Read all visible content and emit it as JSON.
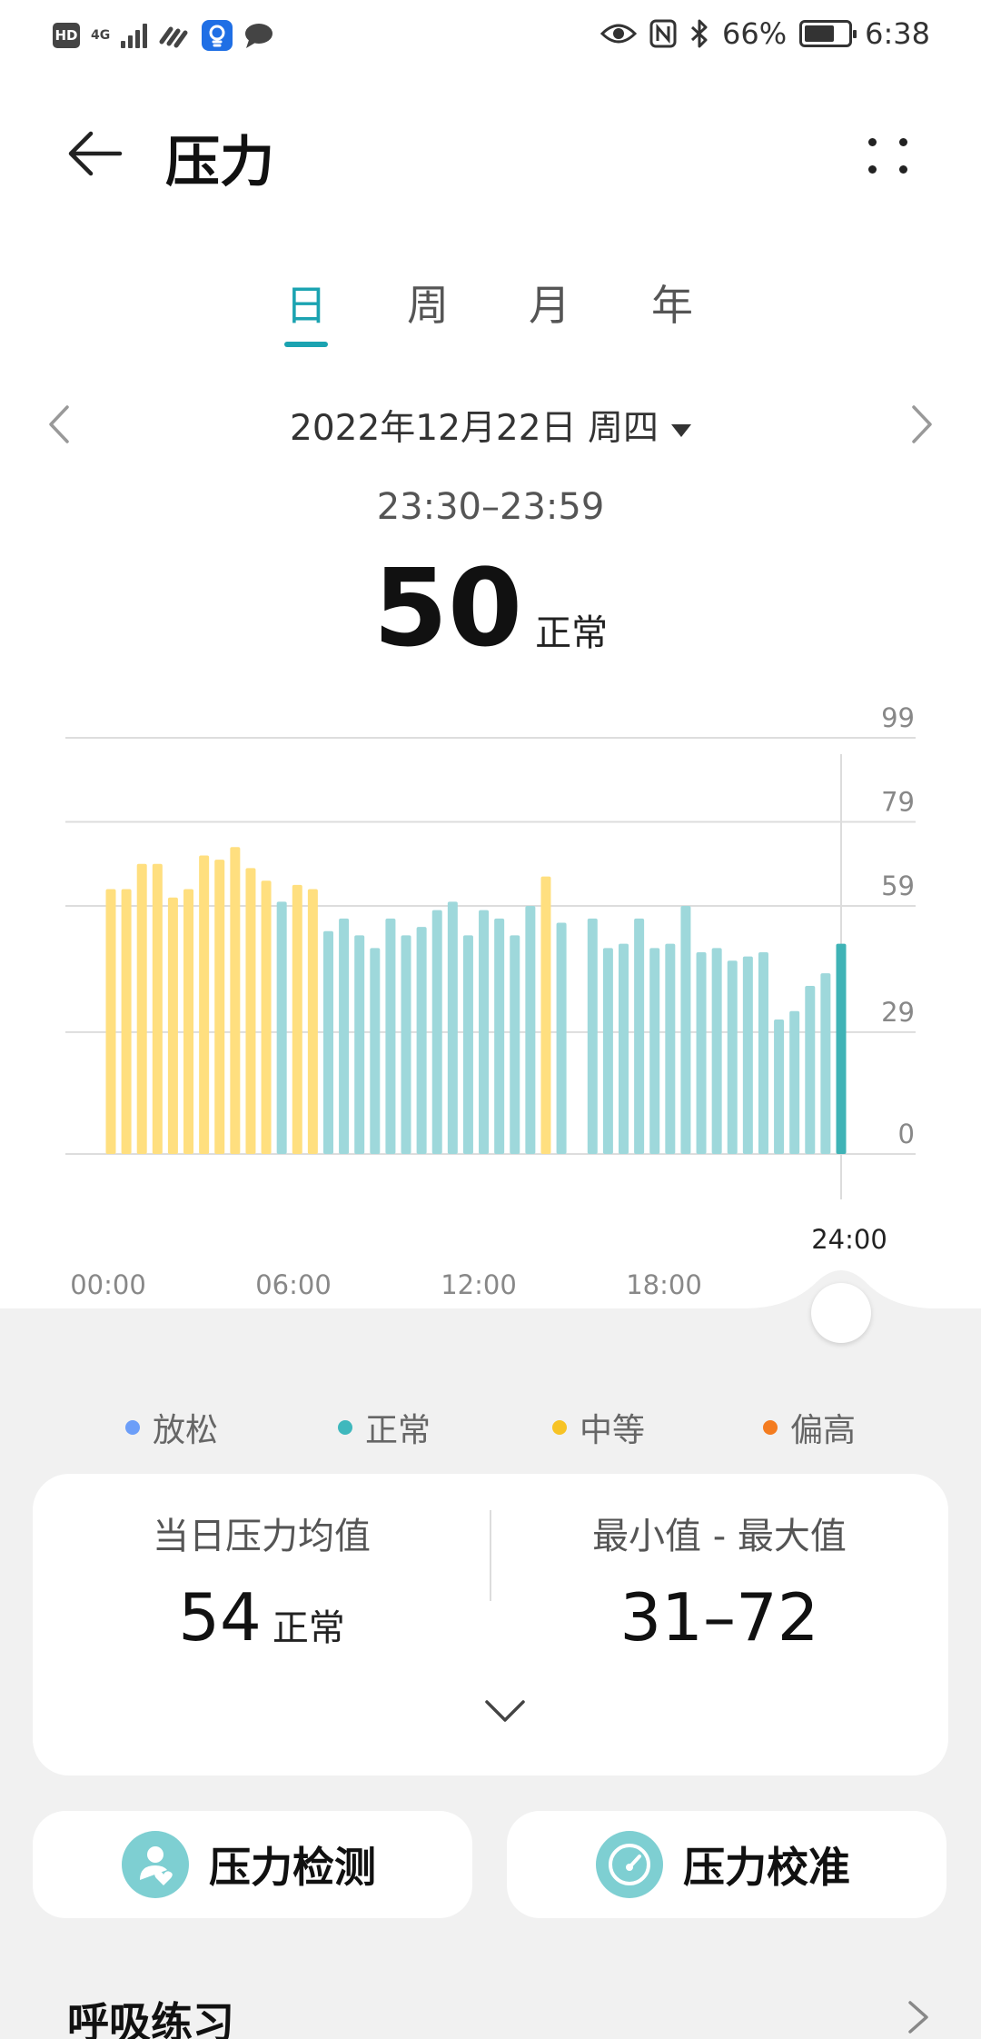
{
  "status_bar": {
    "hd": "HD",
    "network": "4G",
    "battery_percent": "66%",
    "time": "6:38"
  },
  "header": {
    "title": "压力"
  },
  "tabs": [
    {
      "label": "日",
      "active": true
    },
    {
      "label": "周",
      "active": false
    },
    {
      "label": "月",
      "active": false
    },
    {
      "label": "年",
      "active": false
    }
  ],
  "date": {
    "label": "2022年12月22日 周四"
  },
  "selection": {
    "range": "23:30–23:59",
    "value": "50",
    "level": "正常"
  },
  "chart_data": {
    "type": "bar",
    "y_ticks": [
      0,
      29,
      59,
      79,
      99
    ],
    "ylim": [
      0,
      99
    ],
    "x_ticks": [
      "00:00",
      "06:00",
      "12:00",
      "18:00",
      "24:00"
    ],
    "grid": true,
    "categories": [
      "00:00",
      "00:30",
      "01:00",
      "01:30",
      "02:00",
      "02:30",
      "03:00",
      "03:30",
      "04:00",
      "04:30",
      "05:00",
      "05:30",
      "06:00",
      "06:30",
      "07:00",
      "07:30",
      "08:00",
      "08:30",
      "09:00",
      "09:30",
      "10:00",
      "10:30",
      "11:00",
      "11:30",
      "12:00",
      "12:30",
      "13:00",
      "13:30",
      "14:00",
      "14:30",
      "15:00",
      "15:30",
      "16:00",
      "16:30",
      "17:00",
      "17:30",
      "18:00",
      "18:30",
      "19:00",
      "19:30",
      "20:00",
      "20:30",
      "21:00",
      "21:30",
      "22:00",
      "22:30",
      "23:00",
      "23:30"
    ],
    "values": [
      63,
      63,
      69,
      69,
      61,
      63,
      71,
      70,
      73,
      68,
      65,
      60,
      64,
      63,
      53,
      56,
      52,
      49,
      56,
      52,
      54,
      58,
      60,
      52,
      58,
      56,
      52,
      59,
      66,
      55,
      0,
      56,
      49,
      50,
      56,
      49,
      50,
      59,
      48,
      49,
      46,
      47,
      48,
      32,
      34,
      40,
      43,
      50
    ],
    "levels": [
      "中等",
      "中等",
      "中等",
      "中等",
      "中等",
      "中等",
      "中等",
      "中等",
      "中等",
      "中等",
      "中等",
      "正常",
      "中等",
      "中等",
      "正常",
      "正常",
      "正常",
      "正常",
      "正常",
      "正常",
      "正常",
      "正常",
      "正常",
      "正常",
      "正常",
      "正常",
      "正常",
      "正常",
      "中等",
      "正常",
      "none",
      "正常",
      "正常",
      "正常",
      "正常",
      "正常",
      "正常",
      "正常",
      "正常",
      "正常",
      "正常",
      "正常",
      "正常",
      "正常",
      "正常",
      "正常",
      "正常",
      "正常"
    ],
    "selected_index": 47
  },
  "legend": [
    {
      "label": "放松",
      "color": "#6c9ef8"
    },
    {
      "label": "正常",
      "color": "#3fb8bd"
    },
    {
      "label": "中等",
      "color": "#f7c325"
    },
    {
      "label": "偏高",
      "color": "#f47c20"
    }
  ],
  "colors": {
    "normal_bar": "#9ed8db",
    "moderate_bar": "#ffdf7f",
    "selected_bar": "#3fb3b6",
    "accent": "#1ba3b1"
  },
  "summary": {
    "avg_label": "当日压力均值",
    "avg_value": "54",
    "avg_level": "正常",
    "minmax_label": "最小值 - 最大值",
    "minmax_value": "31–72"
  },
  "actions": {
    "detect_label": "压力检测",
    "calibrate_label": "压力校准"
  },
  "breathing": {
    "label": "呼吸练习"
  }
}
